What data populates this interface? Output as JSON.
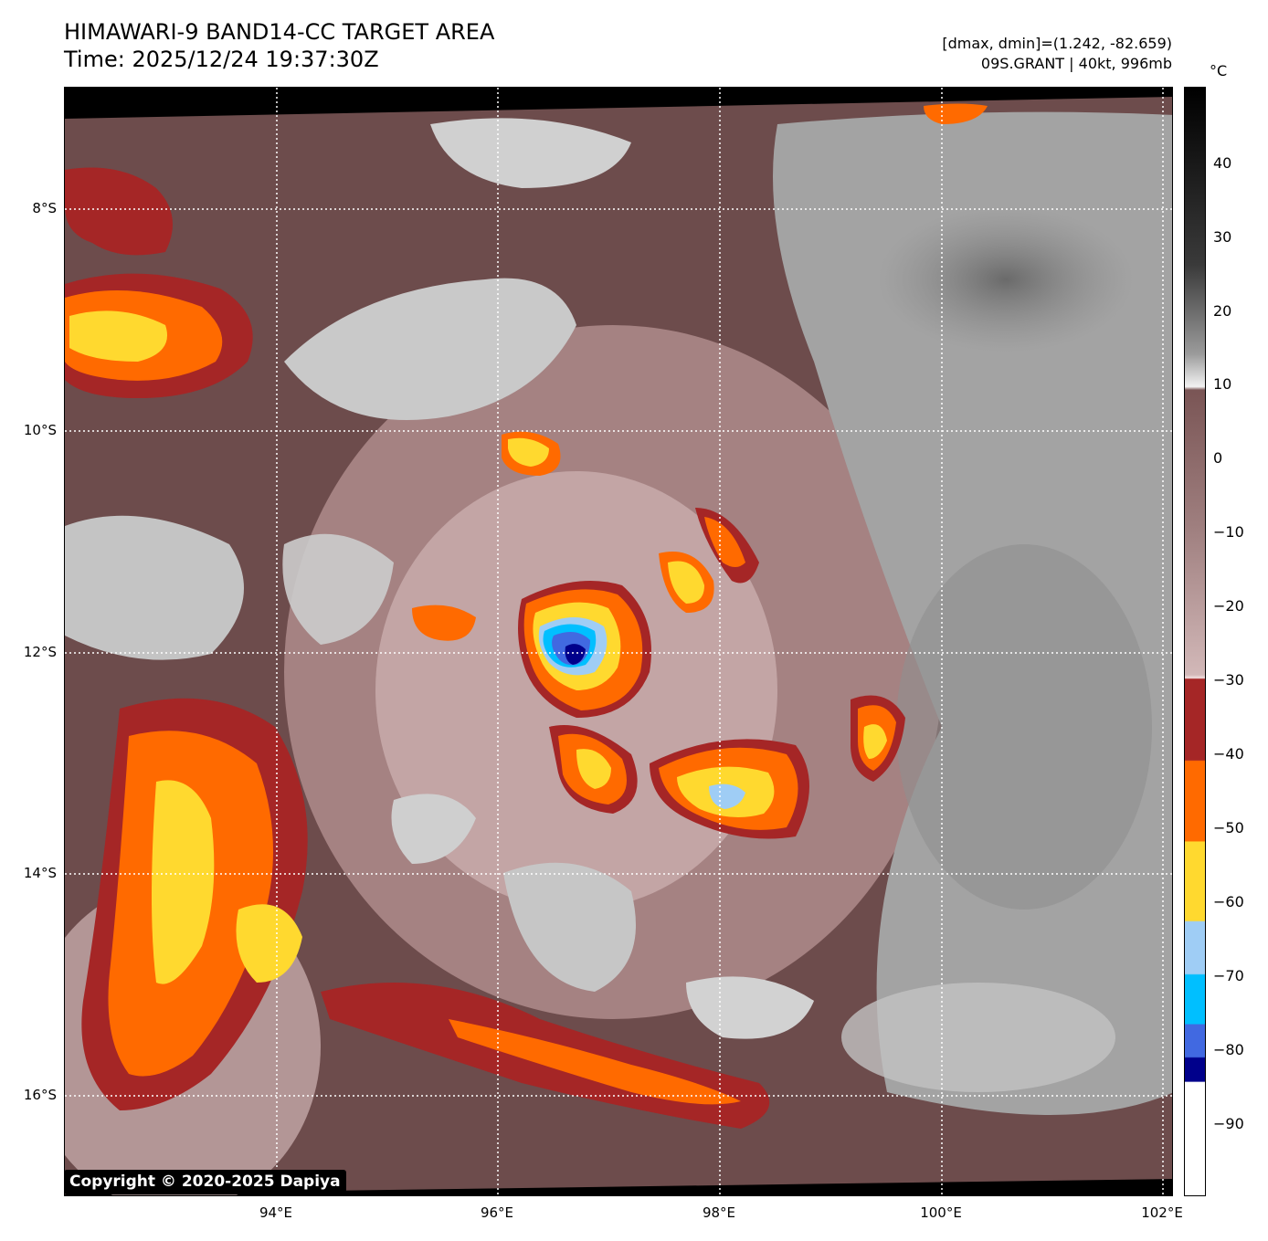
{
  "header": {
    "title": "HIMAWARI-9 BAND14-CC TARGET AREA",
    "time": "Time: 2025/12/24 19:37:30Z",
    "stats": "[dmax, dmin]=(1.242, -82.659)",
    "storm": "09S.GRANT | 40kt, 996mb"
  },
  "map": {
    "lat_labels": [
      "8°S",
      "10°S",
      "12°S",
      "14°S",
      "16°S"
    ],
    "lon_labels": [
      "94°E",
      "96°E",
      "98°E",
      "100°E",
      "102°E"
    ],
    "copyright": "Copyright © 2020-2025 Dapiya"
  },
  "colorbar": {
    "unit": "°C",
    "ticks": [
      "40",
      "30",
      "20",
      "10",
      "0",
      "−10",
      "−20",
      "−30",
      "−40",
      "−50",
      "−60",
      "−70",
      "−80",
      "−90"
    ],
    "range": [
      -100,
      50
    ]
  },
  "colors": {
    "warm_cloud": "#6d4c4c",
    "mid_cloud": "#c9a9a9",
    "clear": "#a8a8a8",
    "dark_red": "#a52626",
    "orange": "#ff6a00",
    "yellow": "#ffd92f",
    "light_blue": "#9fcdf5",
    "cyan": "#00bfff",
    "blue": "#4169e1",
    "navy": "#00008b"
  }
}
